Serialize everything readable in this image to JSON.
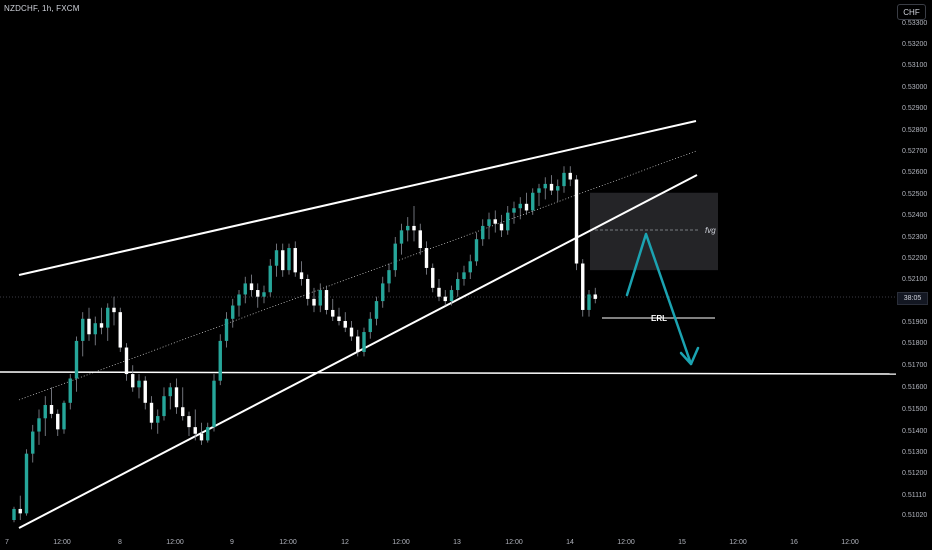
{
  "header": {
    "symbol": "NZDCHF, 1h, FXCM",
    "currency": "CHF"
  },
  "current_price_badge": "38:05",
  "colors": {
    "background": "#000000",
    "up_candle": "#26a69a",
    "down_candle": "#ffffff",
    "trend_lines": "#ffffff",
    "projection_arrow": "#1ba3b1",
    "zone_fill": "#2a2a2e",
    "axis_text": "#b2b5be"
  },
  "chart_data": {
    "type": "candlestick",
    "symbol": "NZDCHF",
    "timeframe": "1h",
    "y_axis": {
      "ticks": [
        "0.53300",
        "0.53200",
        "0.53100",
        "0.53000",
        "0.52900",
        "0.52800",
        "0.52700",
        "0.52600",
        "0.52500",
        "0.52400",
        "0.52300",
        "0.52200",
        "0.52100",
        "0.52000",
        "0.51900",
        "0.51800",
        "0.51700",
        "0.51600",
        "0.51500",
        "0.51400",
        "0.51300",
        "0.51200",
        "0.51110",
        "0.51020"
      ],
      "range": [
        0.5097,
        0.5335
      ]
    },
    "x_axis": {
      "ticks": [
        "7",
        "12:00",
        "8",
        "12:00",
        "9",
        "12:00",
        "12",
        "12:00",
        "13",
        "12:00",
        "14",
        "12:00",
        "15",
        "12:00",
        "16",
        "12:00"
      ]
    },
    "candles": [
      [
        0.5102,
        0.5108,
        0.5101,
        0.5107
      ],
      [
        0.5107,
        0.5113,
        0.5102,
        0.5105
      ],
      [
        0.5105,
        0.5134,
        0.5104,
        0.5132
      ],
      [
        0.5132,
        0.5145,
        0.5128,
        0.5142
      ],
      [
        0.5142,
        0.5152,
        0.5136,
        0.5148
      ],
      [
        0.5148,
        0.5158,
        0.514,
        0.5154
      ],
      [
        0.5154,
        0.5162,
        0.5148,
        0.515
      ],
      [
        0.515,
        0.5152,
        0.514,
        0.5143
      ],
      [
        0.5143,
        0.5156,
        0.5141,
        0.5155
      ],
      [
        0.5155,
        0.5168,
        0.5152,
        0.5166
      ],
      [
        0.5166,
        0.5185,
        0.516,
        0.5183
      ],
      [
        0.5183,
        0.5196,
        0.5176,
        0.5193
      ],
      [
        0.5193,
        0.5198,
        0.5183,
        0.5186
      ],
      [
        0.5186,
        0.5194,
        0.5181,
        0.5191
      ],
      [
        0.5191,
        0.5198,
        0.5186,
        0.5189
      ],
      [
        0.5189,
        0.52,
        0.5183,
        0.5198
      ],
      [
        0.5198,
        0.5203,
        0.519,
        0.5196
      ],
      [
        0.5196,
        0.5198,
        0.5178,
        0.518
      ],
      [
        0.518,
        0.5182,
        0.5165,
        0.5168
      ],
      [
        0.5168,
        0.5172,
        0.516,
        0.5162
      ],
      [
        0.5162,
        0.5168,
        0.5157,
        0.5165
      ],
      [
        0.5165,
        0.5167,
        0.5152,
        0.5155
      ],
      [
        0.5155,
        0.5158,
        0.5143,
        0.5146
      ],
      [
        0.5146,
        0.5152,
        0.5141,
        0.5149
      ],
      [
        0.5149,
        0.5162,
        0.5147,
        0.5158
      ],
      [
        0.5158,
        0.5164,
        0.5152,
        0.5162
      ],
      [
        0.5162,
        0.5166,
        0.515,
        0.5153
      ],
      [
        0.5153,
        0.5162,
        0.5147,
        0.5149
      ],
      [
        0.5149,
        0.5151,
        0.514,
        0.5144
      ],
      [
        0.5144,
        0.5152,
        0.5138,
        0.5141
      ],
      [
        0.5141,
        0.5146,
        0.5136,
        0.5138
      ],
      [
        0.5138,
        0.5146,
        0.5137,
        0.5144
      ],
      [
        0.5144,
        0.5168,
        0.5142,
        0.5165
      ],
      [
        0.5165,
        0.5186,
        0.5163,
        0.5183
      ],
      [
        0.5183,
        0.5196,
        0.518,
        0.5193
      ],
      [
        0.5193,
        0.5202,
        0.5189,
        0.5199
      ],
      [
        0.5199,
        0.5206,
        0.5194,
        0.5204
      ],
      [
        0.5204,
        0.5212,
        0.52,
        0.5209
      ],
      [
        0.5209,
        0.5213,
        0.5203,
        0.5206
      ],
      [
        0.5206,
        0.5209,
        0.5198,
        0.5203
      ],
      [
        0.5203,
        0.5208,
        0.52,
        0.5205
      ],
      [
        0.5205,
        0.522,
        0.5203,
        0.5217
      ],
      [
        0.5217,
        0.5227,
        0.5212,
        0.5224
      ],
      [
        0.5224,
        0.5227,
        0.5212,
        0.5215
      ],
      [
        0.5215,
        0.5227,
        0.5213,
        0.5225
      ],
      [
        0.5225,
        0.5228,
        0.5212,
        0.5214
      ],
      [
        0.5214,
        0.5219,
        0.5208,
        0.5211
      ],
      [
        0.5211,
        0.5213,
        0.5199,
        0.5202
      ],
      [
        0.5202,
        0.5207,
        0.5196,
        0.5199
      ],
      [
        0.5199,
        0.5209,
        0.5196,
        0.5206
      ],
      [
        0.5206,
        0.5208,
        0.5195,
        0.5197
      ],
      [
        0.5197,
        0.5202,
        0.5192,
        0.5194
      ],
      [
        0.5194,
        0.5198,
        0.519,
        0.5192
      ],
      [
        0.5192,
        0.5196,
        0.5187,
        0.5189
      ],
      [
        0.5189,
        0.5192,
        0.5183,
        0.5185
      ],
      [
        0.5185,
        0.5188,
        0.5176,
        0.5178
      ],
      [
        0.5178,
        0.5189,
        0.5176,
        0.5187
      ],
      [
        0.5187,
        0.5196,
        0.5184,
        0.5193
      ],
      [
        0.5193,
        0.5203,
        0.519,
        0.5201
      ],
      [
        0.5201,
        0.5212,
        0.5198,
        0.5209
      ],
      [
        0.5209,
        0.5218,
        0.5205,
        0.5215
      ],
      [
        0.5215,
        0.523,
        0.5212,
        0.5227
      ],
      [
        0.5227,
        0.5236,
        0.5222,
        0.5233
      ],
      [
        0.5233,
        0.5239,
        0.5228,
        0.5235
      ],
      [
        0.5235,
        0.5244,
        0.5228,
        0.5233
      ],
      [
        0.5233,
        0.5236,
        0.5222,
        0.5225
      ],
      [
        0.5225,
        0.5228,
        0.5213,
        0.5216
      ],
      [
        0.5216,
        0.5218,
        0.5205,
        0.5207
      ],
      [
        0.5207,
        0.5211,
        0.5201,
        0.5203
      ],
      [
        0.5203,
        0.5206,
        0.5199,
        0.5201
      ],
      [
        0.5201,
        0.5208,
        0.5199,
        0.5206
      ],
      [
        0.5206,
        0.5214,
        0.5203,
        0.5211
      ],
      [
        0.5211,
        0.5217,
        0.5208,
        0.5214
      ],
      [
        0.5214,
        0.5222,
        0.5211,
        0.5219
      ],
      [
        0.5219,
        0.5232,
        0.5217,
        0.5229
      ],
      [
        0.5229,
        0.5238,
        0.5226,
        0.5235
      ],
      [
        0.5235,
        0.5241,
        0.5229,
        0.5238
      ],
      [
        0.5238,
        0.5242,
        0.5232,
        0.5236
      ],
      [
        0.5236,
        0.524,
        0.523,
        0.5233
      ],
      [
        0.5233,
        0.5244,
        0.5231,
        0.5241
      ],
      [
        0.5241,
        0.5246,
        0.5236,
        0.5243
      ],
      [
        0.5243,
        0.5248,
        0.5238,
        0.5245
      ],
      [
        0.5245,
        0.525,
        0.524,
        0.5242
      ],
      [
        0.5242,
        0.5252,
        0.524,
        0.525
      ],
      [
        0.525,
        0.5254,
        0.5244,
        0.5252
      ],
      [
        0.5252,
        0.5257,
        0.5247,
        0.5254
      ],
      [
        0.5254,
        0.5258,
        0.5249,
        0.5251
      ],
      [
        0.5251,
        0.5256,
        0.5246,
        0.5253
      ],
      [
        0.5253,
        0.5262,
        0.525,
        0.5259
      ],
      [
        0.5259,
        0.5262,
        0.5253,
        0.5256
      ],
      [
        0.5256,
        0.5258,
        0.5215,
        0.5218
      ],
      [
        0.5218,
        0.522,
        0.5194,
        0.5197
      ],
      [
        0.5197,
        0.5206,
        0.5194,
        0.5204
      ],
      [
        0.5204,
        0.5207,
        0.52,
        0.5202
      ]
    ],
    "annotations": [
      {
        "type": "zone",
        "label": "fvg",
        "price_from": 0.5215,
        "price_to": 0.525
      },
      {
        "type": "level",
        "label": "ERL",
        "price": 0.5192
      },
      {
        "type": "horizontal_line",
        "price": 0.5167
      },
      {
        "type": "projection_arrow",
        "path_prices": [
          0.5204,
          0.5231,
          0.517
        ]
      }
    ]
  }
}
